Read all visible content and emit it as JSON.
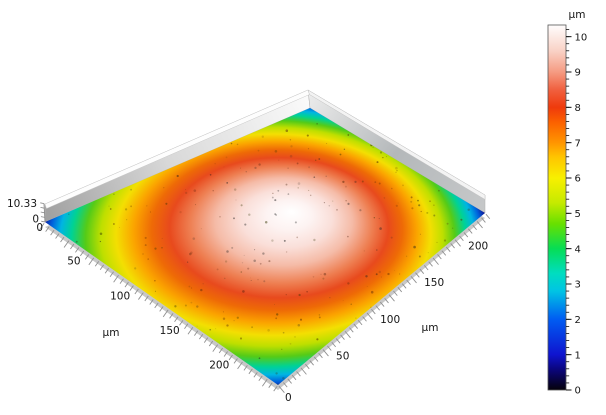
{
  "figure": {
    "background": "#ffffff"
  },
  "chart_data": {
    "type": "heatmap",
    "subtype": "3d-surface-height-map",
    "title": "",
    "x_axis": {
      "label": "µm",
      "tick_labels": [
        "0",
        "50",
        "100",
        "150",
        "200"
      ],
      "tick_values": [
        0,
        50,
        100,
        150,
        200
      ],
      "range": [
        0,
        235
      ],
      "minor_tick_step": 5
    },
    "y_axis": {
      "label": "µm",
      "tick_labels": [
        "0",
        "50",
        "100",
        "150",
        "200"
      ],
      "tick_values": [
        0,
        50,
        100,
        150,
        200
      ],
      "range": [
        0,
        235
      ],
      "minor_tick_step": 5
    },
    "z_axis": {
      "unit": "µm",
      "min": 0,
      "max": 10.33,
      "min_label": "0",
      "max_label": "10.33"
    },
    "colorbar": {
      "title": "µm",
      "range": [
        0,
        10.33
      ],
      "major_tick_values": [
        0,
        1,
        2,
        3,
        4,
        5,
        6,
        7,
        8,
        9,
        10
      ],
      "major_tick_labels": [
        "0",
        "1",
        "2",
        "3",
        "4",
        "5",
        "6",
        "7",
        "8",
        "9",
        "10"
      ],
      "minor_tick_step": 0.2,
      "stops": [
        [
          0,
          "#05010a"
        ],
        [
          0.6,
          "#0b0680"
        ],
        [
          1,
          "#0f14cf"
        ],
        [
          2,
          "#005cf2"
        ],
        [
          2.8,
          "#00c4e4"
        ],
        [
          3.3,
          "#00ddc0"
        ],
        [
          4,
          "#06dd55"
        ],
        [
          4.7,
          "#67e000"
        ],
        [
          5.3,
          "#c6ea00"
        ],
        [
          6,
          "#f8f000"
        ],
        [
          6.6,
          "#ffc400"
        ],
        [
          7,
          "#ff9500"
        ],
        [
          7.6,
          "#fb5f00"
        ],
        [
          8,
          "#ef3a0c"
        ],
        [
          8.5,
          "#f0603f"
        ],
        [
          9,
          "#f59b82"
        ],
        [
          9.6,
          "#f9d2c6"
        ],
        [
          10.33,
          "#fffdfd"
        ]
      ]
    },
    "surface": {
      "shape": "circular dome centered in square field, height falls to 0 at corners",
      "peak_height_um": 10.33,
      "corner_height_um": 0,
      "radial_profile": [
        {
          "r_fraction": 0.0,
          "height_um": 10.3
        },
        {
          "r_fraction": 0.2,
          "height_um": 10.0
        },
        {
          "r_fraction": 0.35,
          "height_um": 9.4
        },
        {
          "r_fraction": 0.5,
          "height_um": 8.2
        },
        {
          "r_fraction": 0.63,
          "height_um": 7.0
        },
        {
          "r_fraction": 0.7,
          "height_um": 6.0
        },
        {
          "r_fraction": 0.76,
          "height_um": 5.0
        },
        {
          "r_fraction": 0.82,
          "height_um": 4.0
        },
        {
          "r_fraction": 0.88,
          "height_um": 3.0
        },
        {
          "r_fraction": 0.92,
          "height_um": 2.0
        },
        {
          "r_fraction": 0.96,
          "height_um": 1.0
        },
        {
          "r_fraction": 1.0,
          "height_um": 0.0
        }
      ],
      "gradient_stops": [
        [
          0,
          "#ffffff"
        ],
        [
          0.1,
          "#fdf3f2"
        ],
        [
          0.2,
          "#fadfd9"
        ],
        [
          0.3,
          "#f5bba7"
        ],
        [
          0.4,
          "#ee7f52"
        ],
        [
          0.48,
          "#e84a1d"
        ],
        [
          0.55,
          "#ee6a06"
        ],
        [
          0.62,
          "#fba300"
        ],
        [
          0.69,
          "#f3df02"
        ],
        [
          0.75,
          "#bedf00"
        ],
        [
          0.81,
          "#55cb17"
        ],
        [
          0.865,
          "#00d295"
        ],
        [
          0.91,
          "#00b5e2"
        ],
        [
          0.95,
          "#0060dc"
        ],
        [
          0.98,
          "#0c1fa0"
        ],
        [
          1,
          "#020233"
        ]
      ]
    }
  }
}
